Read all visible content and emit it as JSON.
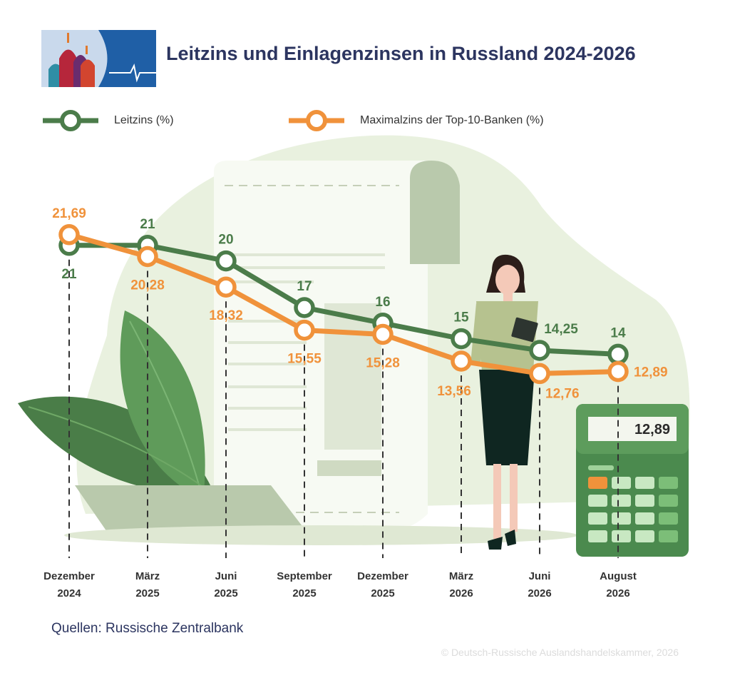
{
  "title": "Leitzins und Einlagenzinsen in Russland 2024-2026",
  "legend": [
    {
      "label": "Leitzins (%)",
      "color": "#4b7c4a"
    },
    {
      "label": "Maximalzins der Top-10-Banken (%)",
      "color": "#f0923b"
    }
  ],
  "source": "Quellen: Russische Zentralbank",
  "copyright": "© Deutsch-Russische Auslandshandelskammer, 2026",
  "calculator_display": "12,89",
  "chart_data": {
    "type": "line",
    "categories": [
      [
        "Dezember",
        "2024"
      ],
      [
        "März",
        "2025"
      ],
      [
        "Juni",
        "2025"
      ],
      [
        "September",
        "2025"
      ],
      [
        "Dezember",
        "2025"
      ],
      [
        "März",
        "2026"
      ],
      [
        "Juni",
        "2026"
      ],
      [
        "August",
        "2026"
      ]
    ],
    "series": [
      {
        "name": "Leitzins (%)",
        "color": "#4b7c4a",
        "values": [
          21,
          21,
          20,
          17,
          16,
          15,
          14.25,
          14
        ],
        "labels": [
          "21",
          "21",
          "20",
          "17",
          "16",
          "15",
          "14,25",
          "14"
        ]
      },
      {
        "name": "Maximalzins der Top-10-Banken (%)",
        "color": "#f0923b",
        "values": [
          21.69,
          20.28,
          18.32,
          15.55,
          15.28,
          13.56,
          12.76,
          12.89
        ],
        "labels": [
          "21,69",
          "20,28",
          "18,32",
          "15,55",
          "15,28",
          "13,56",
          "12,76",
          "12,89"
        ]
      }
    ],
    "ylim": [
      12,
      22
    ],
    "grid": false,
    "legend_position": "top-left"
  }
}
